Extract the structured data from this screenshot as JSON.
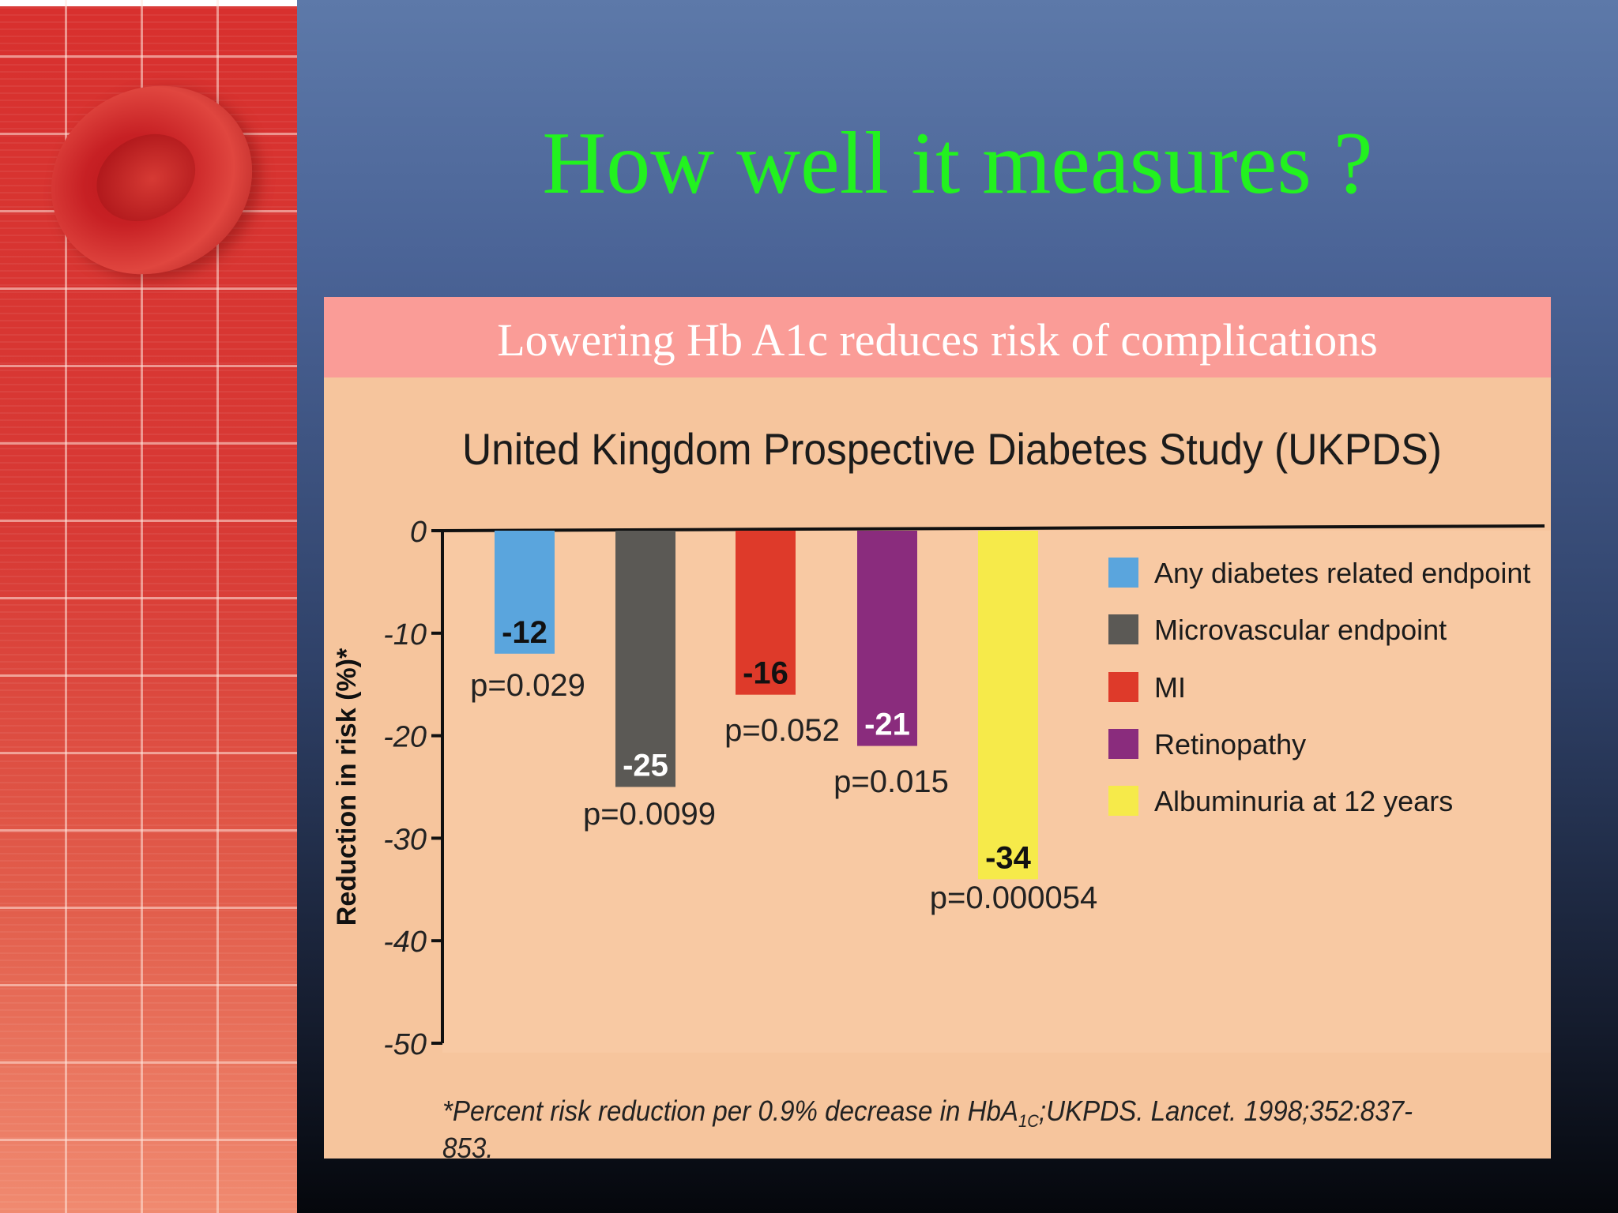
{
  "slide": {
    "title": "How well it measures ?",
    "panel_header": "Lowering Hb A1c reduces risk of complications"
  },
  "footnote": {
    "prefix": "*Percent risk reduction per 0.9% decrease in HbA",
    "subscript": "1C",
    "suffix": ";UKPDS. Lancet. 1998;352:837-853."
  },
  "chart_data": {
    "type": "bar",
    "title": "United Kingdom Prospective Diabetes Study (UKPDS)",
    "ylabel": "Reduction in risk (%)*",
    "xlabel": "",
    "ylim": [
      -50,
      0
    ],
    "yticks": [
      "0",
      "-10",
      "-20",
      "-30",
      "-40",
      "-50"
    ],
    "legend_position": "right",
    "series": [
      {
        "name": "Any diabetes related endpoint",
        "value": -12,
        "label": "-12",
        "p": "p=0.029",
        "color": "#5aa5dd",
        "label_color": "#111111"
      },
      {
        "name": "Microvascular endpoint",
        "value": -25,
        "label": "-25",
        "p": "p=0.0099",
        "color": "#5b5955",
        "label_color": "#ffffff"
      },
      {
        "name": "MI",
        "value": -16,
        "label": "-16",
        "p": "p=0.052",
        "color": "#de3a2a",
        "label_color": "#111111"
      },
      {
        "name": "Retinopathy",
        "value": -21,
        "label": "-21",
        "p": "p=0.015",
        "color": "#8a2c7d",
        "label_color": "#ffffff"
      },
      {
        "name": "Albuminuria at 12 years",
        "value": -34,
        "label": "-34",
        "p": "p=0.000054",
        "color": "#f6ea4a",
        "label_color": "#111111"
      }
    ]
  }
}
